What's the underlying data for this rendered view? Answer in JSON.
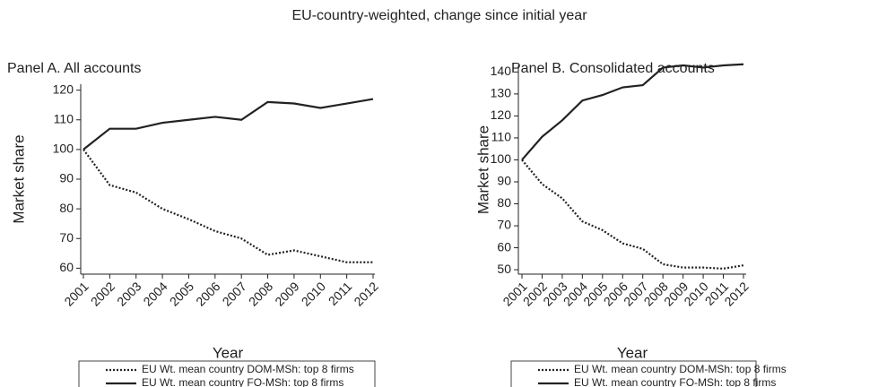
{
  "title": "EU-country-weighted, change since initial year",
  "chart_data": [
    {
      "type": "line",
      "title": "Panel A. All accounts",
      "xlabel": "Year",
      "ylabel": "Market share",
      "x": [
        2001,
        2002,
        2003,
        2004,
        2005,
        2006,
        2007,
        2008,
        2009,
        2010,
        2011,
        2012
      ],
      "xlim": [
        2001,
        2012
      ],
      "xticks": [
        2001,
        2002,
        2003,
        2004,
        2005,
        2006,
        2007,
        2008,
        2009,
        2010,
        2011,
        2012
      ],
      "ylim": [
        58,
        122
      ],
      "yticks": [
        60,
        70,
        80,
        90,
        100,
        110,
        120
      ],
      "series": [
        {
          "name": "EU Wt. mean country DOM-MSh: top 8 firms",
          "color": "#222222",
          "style": "dotted",
          "values": [
            100,
            88,
            85.5,
            80,
            76.5,
            72.5,
            70,
            64.5,
            66,
            64,
            62,
            62
          ]
        },
        {
          "name": "EU Wt. mean country FO-MSh: top 8 firms",
          "color": "#222222",
          "style": "solid",
          "values": [
            100,
            107,
            107,
            109,
            110,
            111,
            110,
            116,
            115.5,
            114,
            115.5,
            117
          ]
        }
      ]
    },
    {
      "type": "line",
      "title": "Panel B. Consolidated accounts",
      "xlabel": "Year",
      "ylabel": "Market share",
      "x": [
        2001,
        2002,
        2003,
        2004,
        2005,
        2006,
        2007,
        2008,
        2009,
        2010,
        2011,
        2012
      ],
      "xlim": [
        2001,
        2012
      ],
      "xticks": [
        2001,
        2002,
        2003,
        2004,
        2005,
        2006,
        2007,
        2008,
        2009,
        2010,
        2011,
        2012
      ],
      "ylim": [
        48,
        143
      ],
      "yticks": [
        50,
        60,
        70,
        80,
        90,
        100,
        110,
        120,
        130,
        140
      ],
      "series": [
        {
          "name": "EU Wt. mean country DOM-MSh: top 8 firms",
          "color": "#222222",
          "style": "dotted",
          "values": [
            100,
            89,
            82.5,
            72,
            68,
            62,
            59.5,
            52.5,
            51,
            51,
            50.5,
            52
          ]
        },
        {
          "name": "EU Wt. mean country FO-MSh: top 8 firms",
          "color": "#222222",
          "style": "solid",
          "values": [
            100,
            110.5,
            118,
            127,
            129.5,
            133,
            134,
            142,
            143,
            142,
            143,
            143.5
          ]
        }
      ]
    }
  ]
}
